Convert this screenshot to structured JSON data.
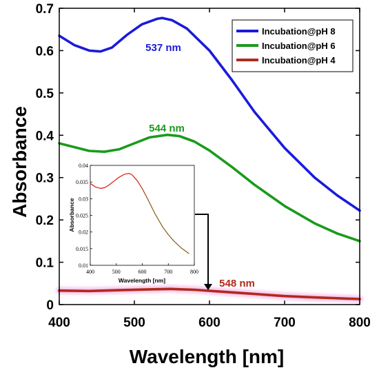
{
  "chart_data": {
    "type": "line",
    "xlabel": "Wavelength [nm]",
    "ylabel": "Absorbance",
    "xlim": [
      400,
      800
    ],
    "ylim": [
      0,
      0.7
    ],
    "x_ticks": [
      "400",
      "500",
      "600",
      "700",
      "800"
    ],
    "y_ticks": [
      "0",
      "0.1",
      "0.2",
      "0.3",
      "0.4",
      "0.5",
      "0.6",
      "0.7"
    ],
    "grid": false,
    "legend_position": "top-right",
    "series": [
      {
        "name": "Incubation@pH 8",
        "color": "#1a1adb",
        "x": [
          400,
          420,
          440,
          455,
          470,
          490,
          510,
          530,
          537,
          550,
          570,
          600,
          630,
          660,
          700,
          740,
          770,
          800
        ],
        "y": [
          0.635,
          0.613,
          0.6,
          0.598,
          0.607,
          0.637,
          0.662,
          0.675,
          0.677,
          0.672,
          0.652,
          0.6,
          0.53,
          0.455,
          0.37,
          0.3,
          0.258,
          0.222
        ]
      },
      {
        "name": "Incubation@pH 6",
        "color": "#1a9a1a",
        "x": [
          400,
          420,
          440,
          460,
          480,
          500,
          520,
          544,
          560,
          580,
          600,
          630,
          660,
          700,
          740,
          770,
          800
        ],
        "y": [
          0.381,
          0.372,
          0.363,
          0.361,
          0.367,
          0.381,
          0.395,
          0.401,
          0.398,
          0.385,
          0.364,
          0.325,
          0.283,
          0.233,
          0.192,
          0.168,
          0.15
        ]
      },
      {
        "name": "Incubation@pH 4",
        "color": "#b02a1a",
        "x": [
          400,
          440,
          480,
          520,
          548,
          580,
          620,
          660,
          700,
          740,
          800
        ],
        "y": [
          0.033,
          0.032,
          0.034,
          0.036,
          0.037,
          0.035,
          0.03,
          0.025,
          0.02,
          0.017,
          0.013
        ]
      }
    ],
    "annotations": [
      {
        "text": "537 nm",
        "x": 537,
        "y": 0.677,
        "color": "#1a1adb"
      },
      {
        "text": "544 nm",
        "x": 544,
        "y": 0.401,
        "color": "#1a9a1a"
      },
      {
        "text": "548 nm",
        "x": 548,
        "y": 0.037,
        "color": "#b02a1a"
      }
    ],
    "inset": {
      "xlabel": "Wavelength [nm]",
      "ylabel": "Absorbance",
      "xlim": [
        400,
        800
      ],
      "ylim": [
        0.01,
        0.04
      ],
      "x_ticks": [
        "400",
        "500",
        "600",
        "700",
        "800"
      ],
      "y_ticks": [
        "0.01",
        "0.015",
        "0.02",
        "0.025",
        "0.03",
        "0.035",
        "0.04"
      ],
      "series": [
        {
          "color_start": "#e01010",
          "color_end": "#8a5a1a",
          "x": [
            400,
            420,
            440,
            455,
            470,
            490,
            510,
            530,
            548,
            560,
            580,
            600,
            620,
            650,
            680,
            700,
            720,
            750,
            780
          ],
          "y": [
            0.0346,
            0.0335,
            0.0331,
            0.0333,
            0.034,
            0.0352,
            0.0364,
            0.0373,
            0.0376,
            0.0372,
            0.0355,
            0.033,
            0.03,
            0.0253,
            0.0213,
            0.0192,
            0.0174,
            0.0152,
            0.0135
          ]
        }
      ]
    }
  }
}
